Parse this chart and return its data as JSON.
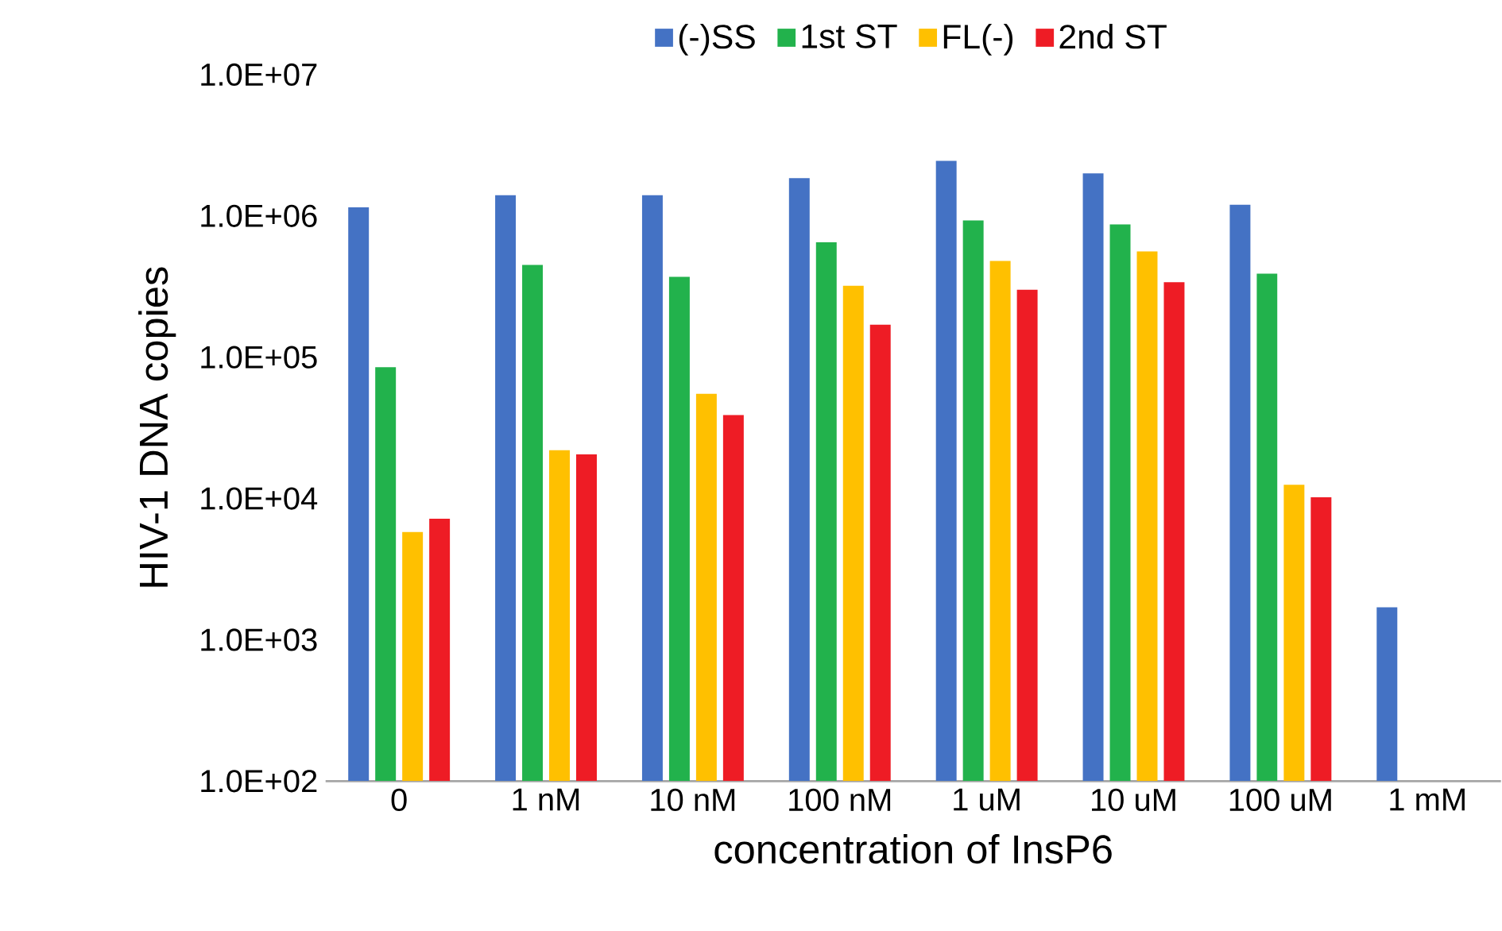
{
  "chart_data": {
    "type": "bar",
    "xlabel": "concentration of InsP6",
    "ylabel": "HIV-1 DNA copies",
    "categories": [
      "0",
      "1 nM",
      "10 nM",
      "100 nM",
      "1 uM",
      "10 uM",
      "100 uM",
      "1 mM"
    ],
    "series": [
      {
        "name": "(-)SS",
        "color": "#4472c4",
        "values": [
          1150000,
          1400000,
          1400000,
          1850000,
          2450000,
          2000000,
          1200000,
          1700
        ]
      },
      {
        "name": "1st ST",
        "color": "#22b24c",
        "values": [
          85000,
          450000,
          370000,
          650000,
          930000,
          870000,
          390000,
          null
        ]
      },
      {
        "name": "FL(-)",
        "color": "#ffc000",
        "values": [
          5800,
          22000,
          55000,
          320000,
          480000,
          560000,
          12500,
          null
        ]
      },
      {
        "name": "2nd ST",
        "color": "#ee1c25",
        "values": [
          7200,
          20500,
          39000,
          170000,
          300000,
          340000,
          10200,
          null
        ]
      }
    ],
    "log": "y",
    "ylim": [
      100,
      10000000
    ],
    "yticks": [
      {
        "value": 100,
        "label": "1.0E+02"
      },
      {
        "value": 1000,
        "label": "1.0E+03"
      },
      {
        "value": 10000,
        "label": "1.0E+04"
      },
      {
        "value": 100000,
        "label": "1.0E+05"
      },
      {
        "value": 1000000,
        "label": "1.0E+06"
      },
      {
        "value": 10000000,
        "label": "1.0E+07"
      }
    ],
    "legend": "top"
  }
}
